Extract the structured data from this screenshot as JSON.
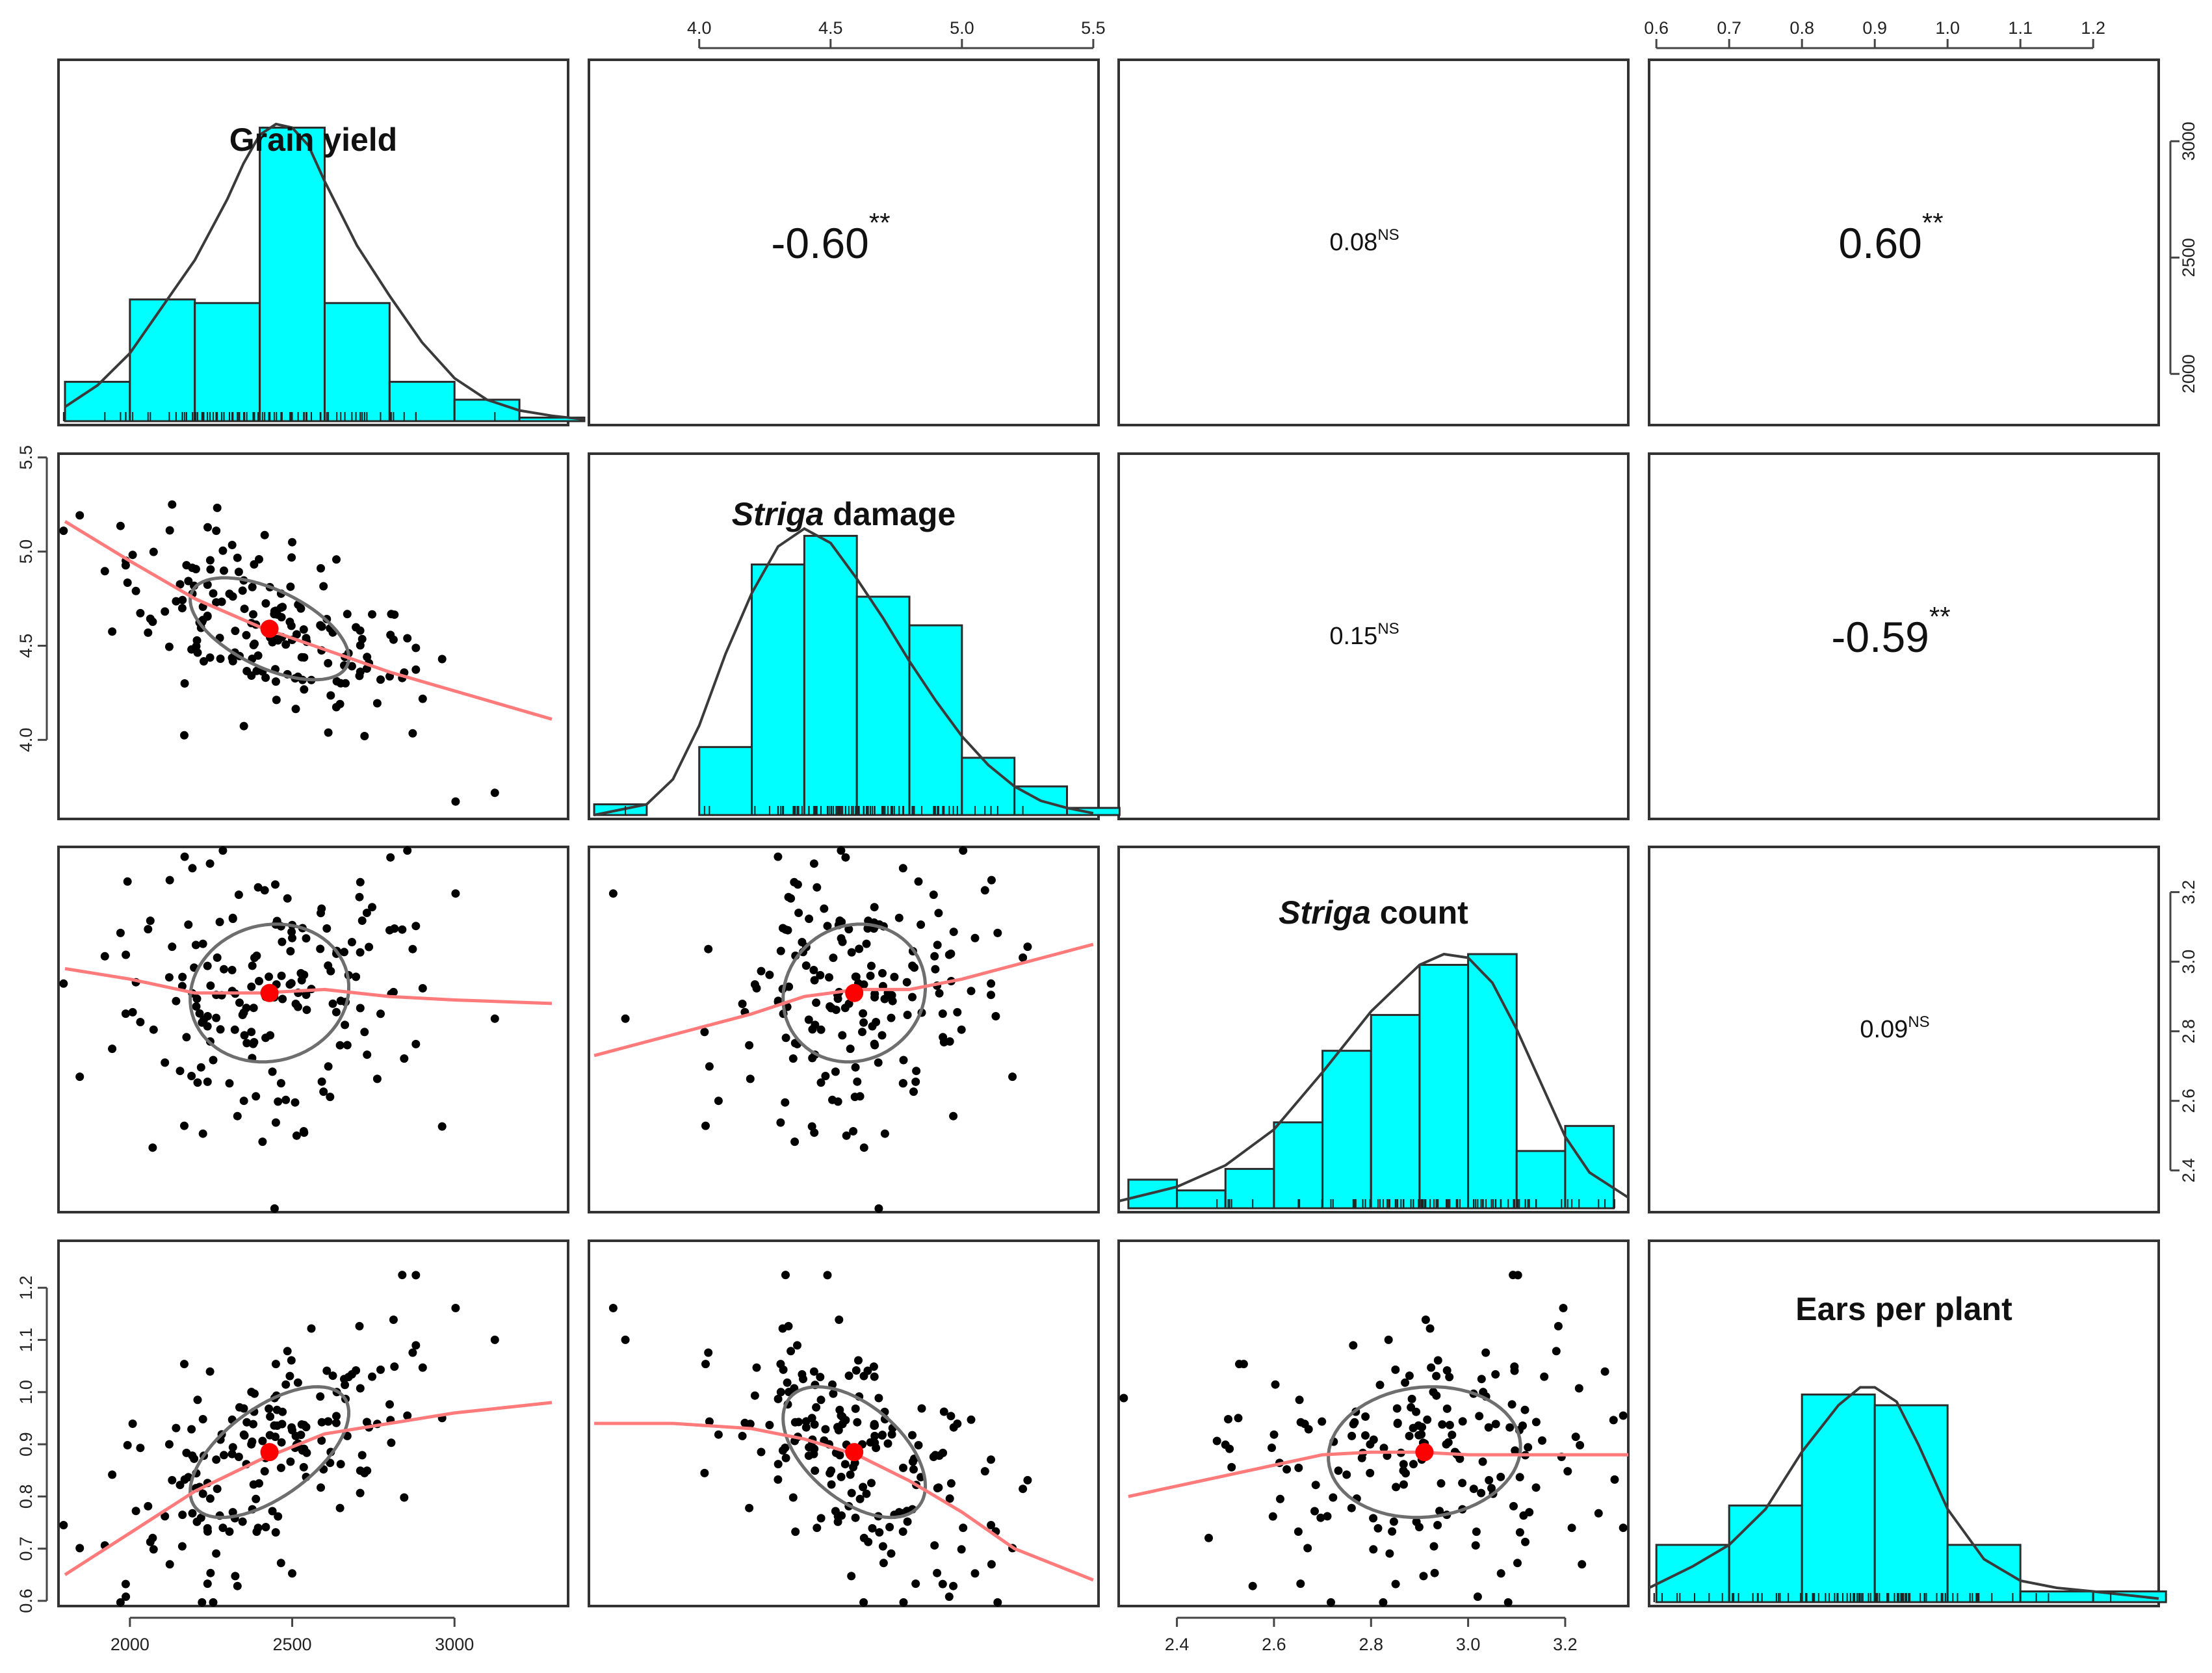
{
  "chart_data": {
    "type": "scatterplot-matrix",
    "variables": [
      {
        "key": "yield",
        "label": "Grain yield",
        "italic_part": "",
        "rest": "Grain yield",
        "range": [
          1780,
          3350
        ],
        "ticks": [
          2000,
          2500,
          3000
        ]
      },
      {
        "key": "damage",
        "label": "Striga damage",
        "italic_part": "Striga",
        "rest": " damage",
        "range": [
          3.58,
          5.52
        ],
        "ticks": [
          4.0,
          4.5,
          5.0,
          5.5
        ]
      },
      {
        "key": "count",
        "label": "Striga count",
        "italic_part": "Striga",
        "rest": " count",
        "range": [
          2.28,
          3.33
        ],
        "ticks": [
          2.4,
          2.6,
          2.8,
          3.0,
          3.2
        ]
      },
      {
        "key": "ears",
        "label": "Ears per plant",
        "italic_part": "",
        "rest": "Ears per plant",
        "range": [
          0.59,
          1.29
        ],
        "ticks": [
          0.6,
          0.7,
          0.8,
          0.9,
          1.0,
          1.1,
          1.2
        ]
      }
    ],
    "correlations": [
      {
        "row": 0,
        "col": 1,
        "value": "-0.60",
        "signif": "**",
        "size": "large"
      },
      {
        "row": 0,
        "col": 2,
        "value": "0.08",
        "signif": "NS",
        "size": "small"
      },
      {
        "row": 0,
        "col": 3,
        "value": "0.60",
        "signif": "**",
        "size": "large"
      },
      {
        "row": 1,
        "col": 2,
        "value": "0.15",
        "signif": "NS",
        "size": "small"
      },
      {
        "row": 1,
        "col": 3,
        "value": "-0.59",
        "signif": "**",
        "size": "large"
      },
      {
        "row": 2,
        "col": 3,
        "value": "0.09",
        "signif": "NS",
        "size": "small"
      }
    ],
    "histograms": [
      {
        "var": "yield",
        "breaks": [
          1800,
          2000,
          2200,
          2400,
          2600,
          2800,
          3000,
          3200,
          3400
        ],
        "heights": [
          0.11,
          0.34,
          0.33,
          0.82,
          0.33,
          0.11,
          0.06,
          0.01
        ],
        "density_x": [
          1800,
          1900,
          2000,
          2100,
          2200,
          2300,
          2350,
          2400,
          2450,
          2500,
          2550,
          2600,
          2700,
          2800,
          2900,
          3000,
          3100,
          3200,
          3300,
          3400
        ],
        "density_y": [
          0.04,
          0.1,
          0.19,
          0.32,
          0.45,
          0.62,
          0.72,
          0.8,
          0.83,
          0.82,
          0.77,
          0.67,
          0.49,
          0.35,
          0.22,
          0.12,
          0.06,
          0.03,
          0.015,
          0.005
        ]
      },
      {
        "var": "damage",
        "breaks": [
          3.6,
          3.8,
          4.0,
          4.2,
          4.4,
          4.6,
          4.8,
          5.0,
          5.2,
          5.4,
          5.6
        ],
        "heights": [
          0.03,
          0.0,
          0.19,
          0.7,
          0.78,
          0.61,
          0.53,
          0.16,
          0.08,
          0.02
        ],
        "density_x": [
          3.6,
          3.8,
          3.9,
          4.0,
          4.1,
          4.2,
          4.3,
          4.4,
          4.5,
          4.6,
          4.7,
          4.8,
          4.9,
          5.0,
          5.1,
          5.2,
          5.3,
          5.4,
          5.5
        ],
        "density_y": [
          0.0,
          0.03,
          0.1,
          0.25,
          0.45,
          0.62,
          0.75,
          0.8,
          0.76,
          0.66,
          0.55,
          0.43,
          0.32,
          0.22,
          0.14,
          0.08,
          0.04,
          0.02,
          0.005
        ]
      },
      {
        "var": "count",
        "breaks": [
          2.3,
          2.4,
          2.5,
          2.6,
          2.7,
          2.8,
          2.9,
          3.0,
          3.1,
          3.2,
          3.3
        ],
        "heights": [
          0.08,
          0.05,
          0.11,
          0.24,
          0.44,
          0.54,
          0.68,
          0.71,
          0.16,
          0.23
        ],
        "density_x": [
          2.28,
          2.4,
          2.5,
          2.6,
          2.7,
          2.8,
          2.9,
          2.95,
          3.0,
          3.05,
          3.1,
          3.15,
          3.2,
          3.25,
          3.33
        ],
        "density_y": [
          0.02,
          0.06,
          0.12,
          0.22,
          0.38,
          0.55,
          0.68,
          0.71,
          0.7,
          0.63,
          0.5,
          0.35,
          0.2,
          0.1,
          0.03
        ]
      },
      {
        "var": "ears",
        "breaks": [
          0.6,
          0.7,
          0.8,
          0.9,
          1.0,
          1.1,
          1.2,
          1.3
        ],
        "heights": [
          0.16,
          0.27,
          0.58,
          0.55,
          0.16,
          0.03,
          0.03
        ],
        "density_x": [
          0.59,
          0.65,
          0.7,
          0.75,
          0.8,
          0.85,
          0.88,
          0.9,
          0.93,
          0.96,
          1.0,
          1.05,
          1.1,
          1.15,
          1.2,
          1.29
        ],
        "density_y": [
          0.04,
          0.1,
          0.16,
          0.26,
          0.42,
          0.55,
          0.6,
          0.6,
          0.56,
          0.44,
          0.26,
          0.12,
          0.06,
          0.04,
          0.03,
          0.01
        ]
      }
    ],
    "means": {
      "yield": 2430,
      "damage": 4.59,
      "count": 2.91,
      "ears": 0.885
    },
    "sds": {
      "yield": 255,
      "damage": 0.27,
      "count": 0.2,
      "ears": 0.12
    },
    "smoothers": [
      {
        "row": 1,
        "col": 0,
        "x": [
          1800,
          2000,
          2200,
          2400,
          2600,
          2800,
          3000,
          3300
        ],
        "y": [
          5.16,
          4.95,
          4.75,
          4.6,
          4.48,
          4.36,
          4.26,
          4.11
        ]
      },
      {
        "row": 2,
        "col": 0,
        "x": [
          1800,
          2000,
          2200,
          2400,
          2600,
          2800,
          3000,
          3300
        ],
        "y": [
          2.98,
          2.95,
          2.91,
          2.91,
          2.92,
          2.9,
          2.89,
          2.88
        ]
      },
      {
        "row": 2,
        "col": 1,
        "x": [
          3.6,
          3.9,
          4.2,
          4.4,
          4.6,
          4.8,
          5.0,
          5.2,
          5.5
        ],
        "y": [
          2.73,
          2.79,
          2.85,
          2.9,
          2.92,
          2.92,
          2.95,
          2.99,
          3.05
        ]
      },
      {
        "row": 3,
        "col": 0,
        "x": [
          1800,
          2000,
          2200,
          2400,
          2600,
          2800,
          3000,
          3300
        ],
        "y": [
          0.65,
          0.73,
          0.81,
          0.87,
          0.92,
          0.94,
          0.96,
          0.98
        ]
      },
      {
        "row": 3,
        "col": 1,
        "x": [
          3.6,
          3.9,
          4.2,
          4.4,
          4.6,
          4.8,
          5.0,
          5.2,
          5.5
        ],
        "y": [
          0.94,
          0.94,
          0.93,
          0.91,
          0.88,
          0.83,
          0.77,
          0.7,
          0.64
        ]
      },
      {
        "row": 3,
        "col": 2,
        "x": [
          2.3,
          2.5,
          2.7,
          2.8,
          2.9,
          3.0,
          3.1,
          3.33
        ],
        "y": [
          0.8,
          0.84,
          0.88,
          0.885,
          0.885,
          0.88,
          0.88,
          0.88
        ]
      }
    ],
    "point_count": 180,
    "axes": {
      "x_axis_bottom": [
        "yield",
        "count"
      ],
      "x_axis_top": [
        "damage",
        "ears"
      ],
      "y_axis_left": [
        "damage",
        "ears"
      ],
      "y_axis_right": [
        "yield",
        "count"
      ]
    }
  }
}
